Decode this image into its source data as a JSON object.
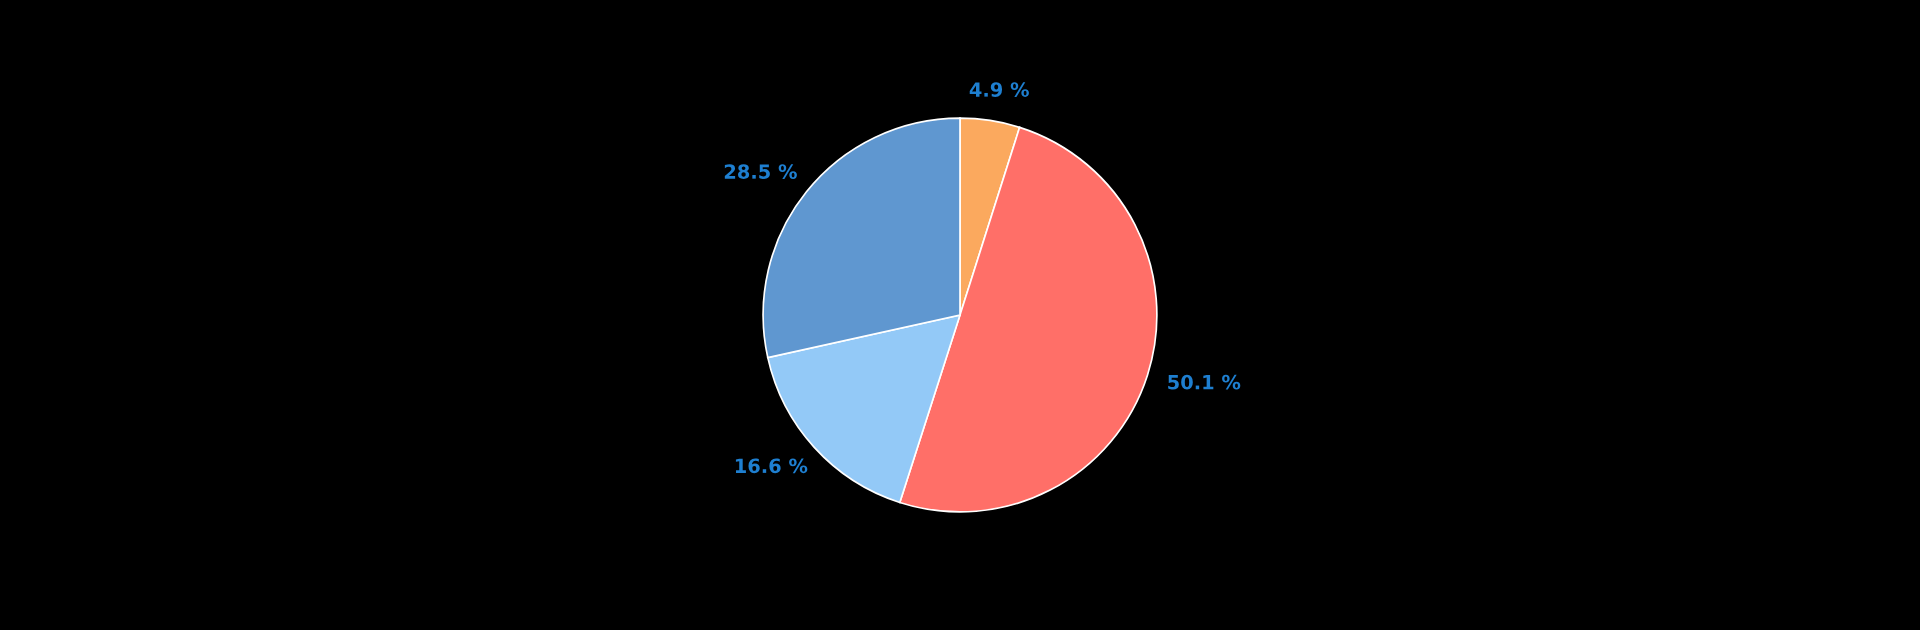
{
  "chart_data": {
    "type": "pie",
    "categories": [
      null,
      null,
      null,
      null
    ],
    "values": [
      4.9,
      50.1,
      16.6,
      28.5
    ],
    "colors": [
      "#fba95e",
      "#ff6f68",
      "#93c9f7",
      "#5f97d0"
    ],
    "value_labels": [
      "4.9 %",
      "50.1 %",
      "16.6 %",
      "28.5 %"
    ]
  }
}
